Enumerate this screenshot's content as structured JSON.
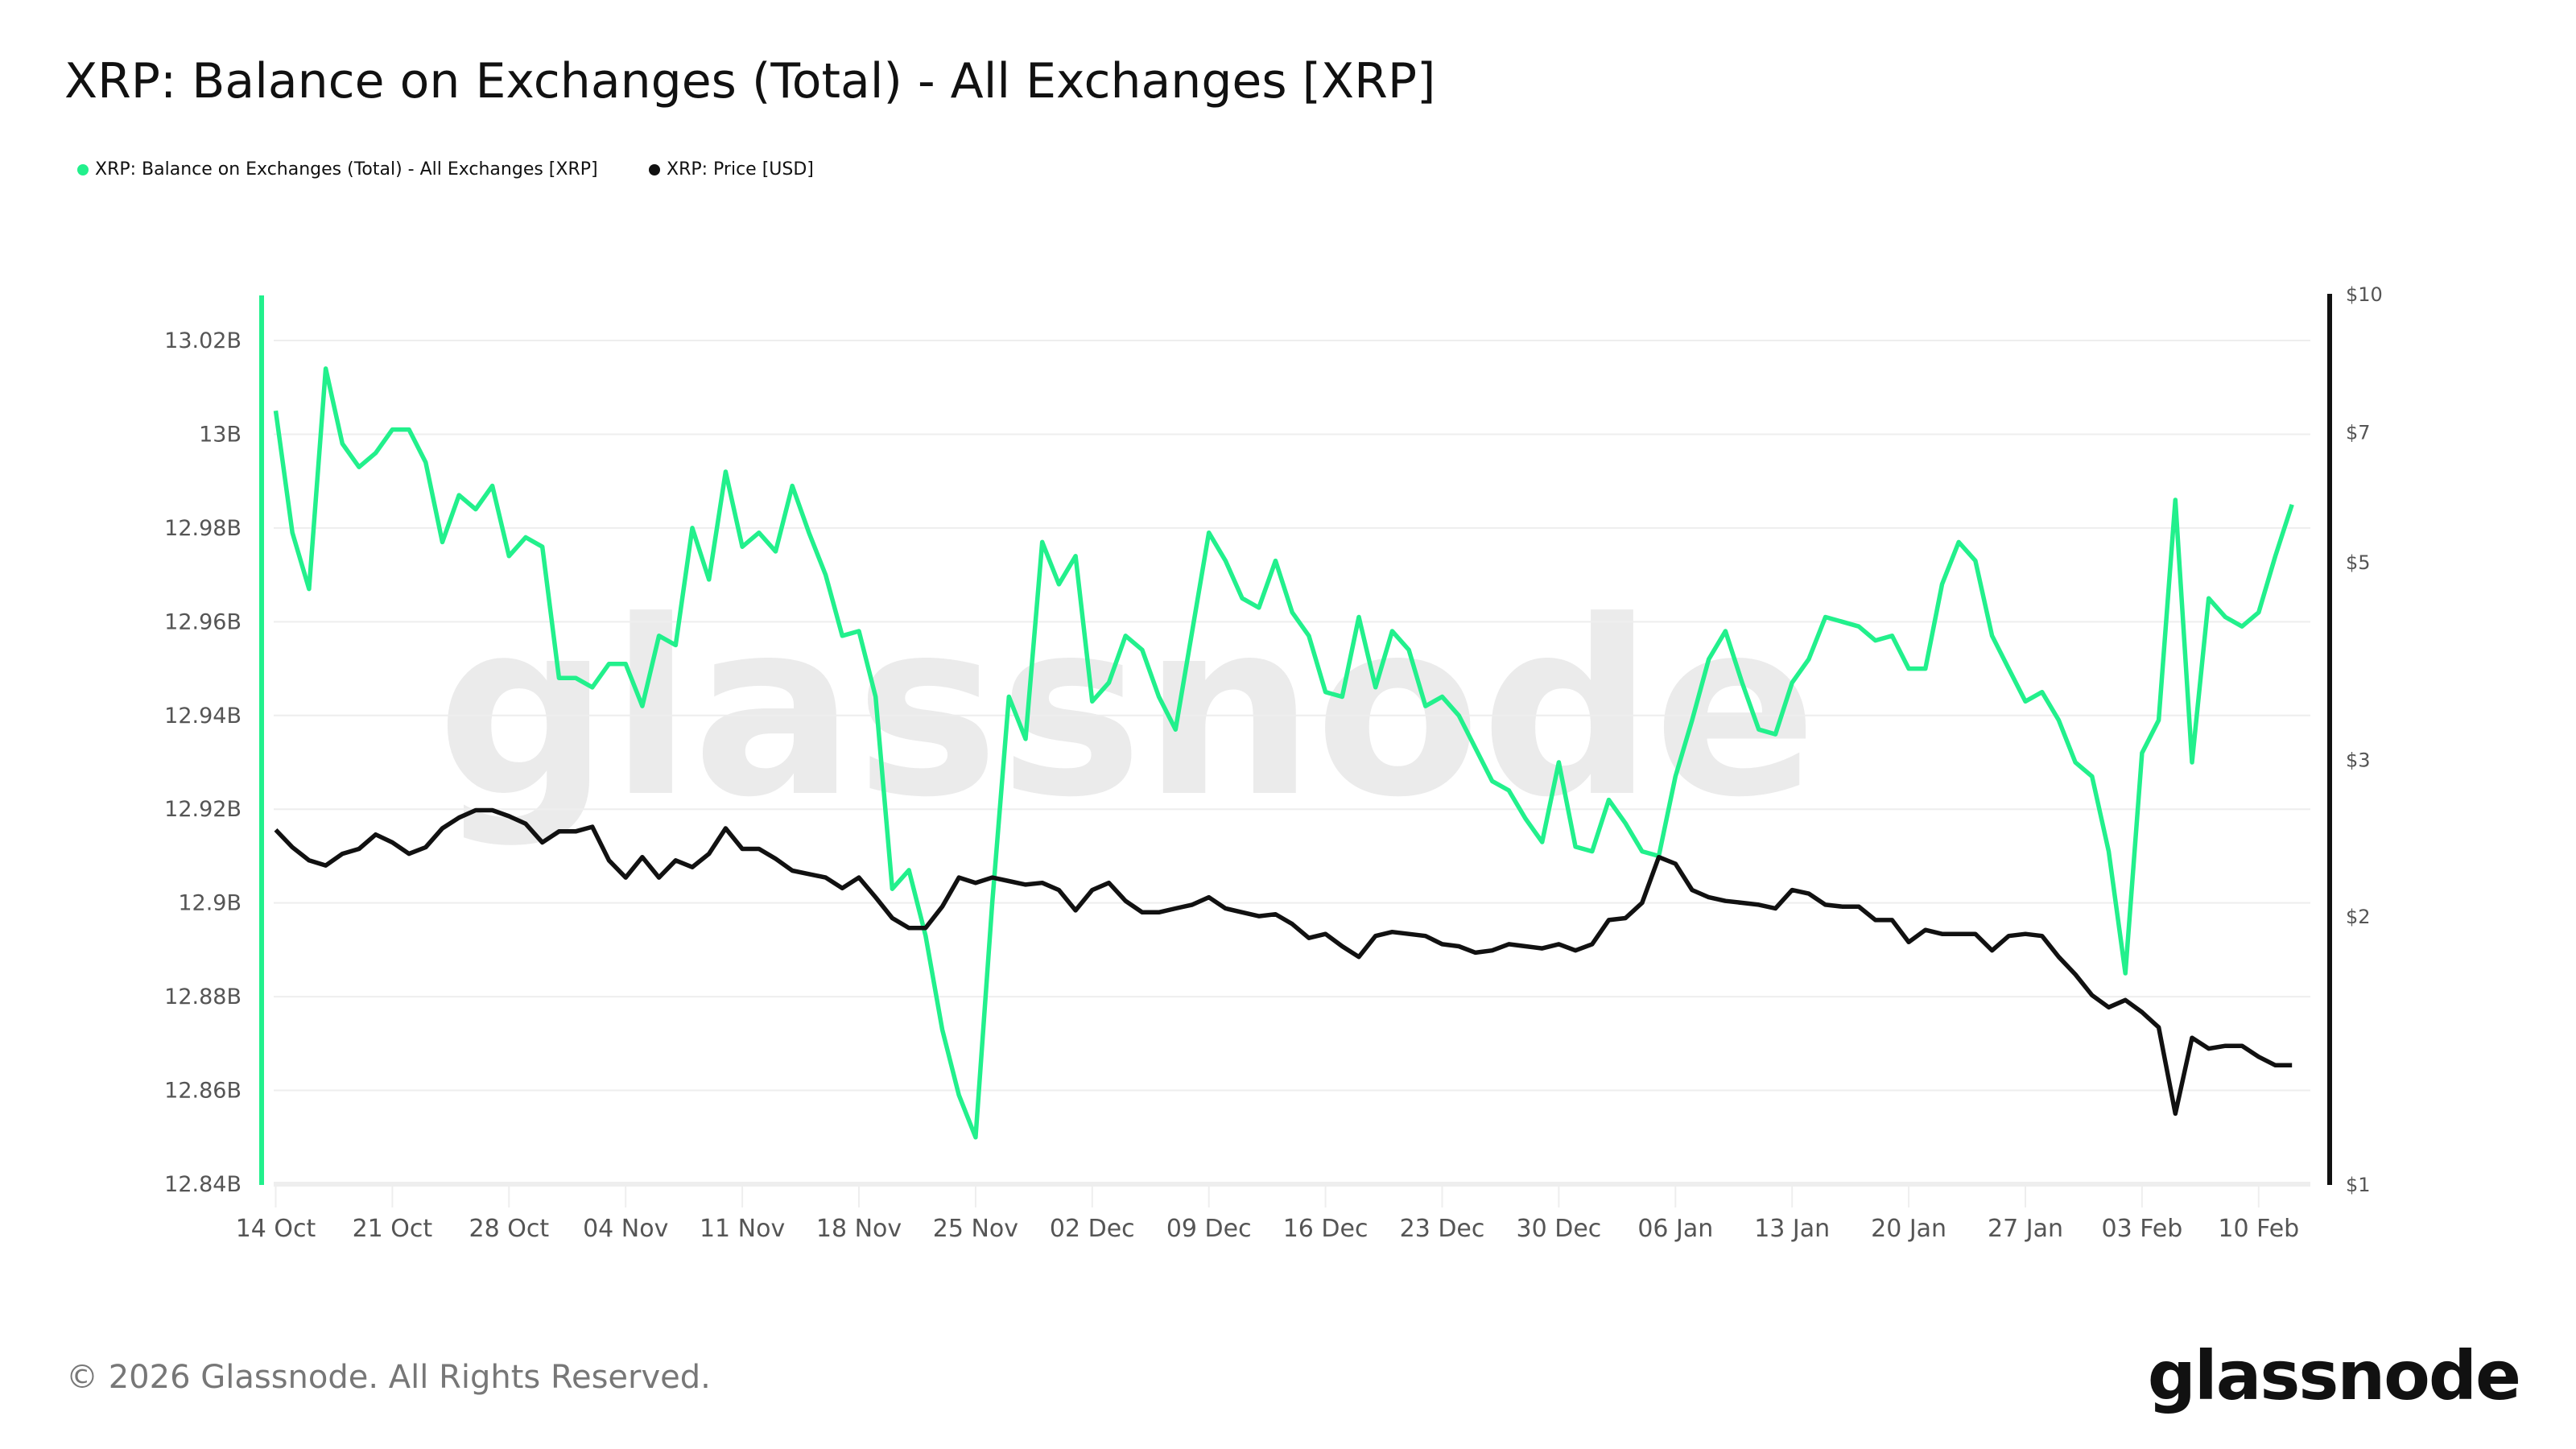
{
  "title": "XRP: Balance on Exchanges (Total) - All Exchanges [XRP]",
  "footer": {
    "copyright": "© 2026 Glassnode. All Rights Reserved.",
    "logo": "glassnode"
  },
  "watermark": "glassnode",
  "colors": {
    "balance": "#22f08c",
    "price": "#111111",
    "grid": "#eeeeee",
    "tick_text": "#555555"
  },
  "chart_data": {
    "type": "line",
    "title": "XRP: Balance on Exchanges (Total) - All Exchanges [XRP]",
    "legend": {
      "placement": "top-left"
    },
    "grid": true,
    "x_tick_labels": [
      "14 Oct",
      "21 Oct",
      "28 Oct",
      "04 Nov",
      "11 Nov",
      "18 Nov",
      "25 Nov",
      "02 Dec",
      "09 Dec",
      "16 Dec",
      "23 Dec",
      "30 Dec",
      "06 Jan",
      "13 Jan",
      "20 Jan",
      "27 Jan",
      "03 Feb",
      "10 Feb"
    ],
    "y_left": {
      "ticks": [
        12.84,
        12.86,
        12.88,
        12.9,
        12.92,
        12.94,
        12.96,
        12.98,
        13.0,
        13.02
      ],
      "tick_labels": [
        "12.84B",
        "12.86B",
        "12.88B",
        "12.9B",
        "12.92B",
        "12.94B",
        "12.96B",
        "12.98B",
        "13B",
        "13.02B"
      ],
      "range": [
        12.84,
        13.02
      ],
      "unit": "B XRP",
      "scale": "linear"
    },
    "y_right": {
      "ticks": [
        1,
        2,
        3,
        5,
        7,
        10
      ],
      "tick_labels": [
        "$1",
        "$2",
        "$3",
        "$5",
        "$7",
        "$10"
      ],
      "range": [
        1,
        10
      ],
      "unit": "USD",
      "scale": "log"
    },
    "x": [
      "14 Oct",
      "15 Oct",
      "16 Oct",
      "17 Oct",
      "18 Oct",
      "19 Oct",
      "20 Oct",
      "21 Oct",
      "22 Oct",
      "23 Oct",
      "24 Oct",
      "25 Oct",
      "26 Oct",
      "27 Oct",
      "28 Oct",
      "29 Oct",
      "30 Oct",
      "31 Oct",
      "01 Nov",
      "02 Nov",
      "03 Nov",
      "04 Nov",
      "05 Nov",
      "06 Nov",
      "07 Nov",
      "08 Nov",
      "09 Nov",
      "10 Nov",
      "11 Nov",
      "12 Nov",
      "13 Nov",
      "14 Nov",
      "15 Nov",
      "16 Nov",
      "17 Nov",
      "18 Nov",
      "19 Nov",
      "20 Nov",
      "21 Nov",
      "22 Nov",
      "23 Nov",
      "24 Nov",
      "25 Nov",
      "26 Nov",
      "27 Nov",
      "28 Nov",
      "29 Nov",
      "30 Nov",
      "01 Dec",
      "02 Dec",
      "03 Dec",
      "04 Dec",
      "05 Dec",
      "06 Dec",
      "07 Dec",
      "08 Dec",
      "09 Dec",
      "10 Dec",
      "11 Dec",
      "12 Dec",
      "13 Dec",
      "14 Dec",
      "15 Dec",
      "16 Dec",
      "17 Dec",
      "18 Dec",
      "19 Dec",
      "20 Dec",
      "21 Dec",
      "22 Dec",
      "23 Dec",
      "24 Dec",
      "25 Dec",
      "26 Dec",
      "27 Dec",
      "28 Dec",
      "29 Dec",
      "30 Dec",
      "31 Dec",
      "01 Jan",
      "02 Jan",
      "03 Jan",
      "04 Jan",
      "05 Jan",
      "06 Jan",
      "07 Jan",
      "08 Jan",
      "09 Jan",
      "10 Jan",
      "11 Jan",
      "12 Jan",
      "13 Jan",
      "14 Jan",
      "15 Jan",
      "16 Jan",
      "17 Jan",
      "18 Jan",
      "19 Jan",
      "20 Jan",
      "21 Jan",
      "22 Jan",
      "23 Jan",
      "24 Jan",
      "25 Jan",
      "26 Jan",
      "27 Jan",
      "28 Jan",
      "29 Jan",
      "30 Jan",
      "31 Jan",
      "01 Feb",
      "02 Feb",
      "03 Feb",
      "04 Feb",
      "05 Feb",
      "06 Feb",
      "07 Feb",
      "08 Feb",
      "09 Feb",
      "10 Feb",
      "11 Feb",
      "12 Feb"
    ],
    "series": [
      {
        "name": "XRP: Balance on Exchanges (Total) - All Exchanges [XRP]",
        "axis": "left",
        "color": "#22f08c",
        "values": [
          13.005,
          12.979,
          12.967,
          13.014,
          12.998,
          12.993,
          12.996,
          13.001,
          13.001,
          12.994,
          12.977,
          12.987,
          12.984,
          12.989,
          12.974,
          12.978,
          12.976,
          12.948,
          12.948,
          12.946,
          12.951,
          12.951,
          12.942,
          12.957,
          12.955,
          12.98,
          12.969,
          12.992,
          12.976,
          12.979,
          12.975,
          12.989,
          12.979,
          12.97,
          12.957,
          12.958,
          12.944,
          12.903,
          12.907,
          12.893,
          12.873,
          12.859,
          12.85,
          12.9,
          12.944,
          12.935,
          12.977,
          12.968,
          12.974,
          12.943,
          12.947,
          12.957,
          12.954,
          12.944,
          12.937,
          12.958,
          12.979,
          12.973,
          12.965,
          12.963,
          12.973,
          12.962,
          12.957,
          12.945,
          12.944,
          12.961,
          12.946,
          12.958,
          12.954,
          12.942,
          12.944,
          12.94,
          12.933,
          12.926,
          12.924,
          12.918,
          12.913,
          12.93,
          12.912,
          12.911,
          12.922,
          12.917,
          12.911,
          12.91,
          12.927,
          12.939,
          12.952,
          12.958,
          12.947,
          12.937,
          12.936,
          12.947,
          12.952,
          12.961,
          12.96,
          12.959,
          12.956,
          12.957,
          12.95,
          12.95,
          12.968,
          12.977,
          12.973,
          12.957,
          12.95,
          12.943,
          12.945,
          12.939,
          12.93,
          12.927,
          12.911,
          12.885,
          12.932,
          12.939,
          12.986,
          12.93,
          12.965,
          12.961,
          12.959,
          12.962,
          12.974,
          12.985
        ]
      },
      {
        "name": "XRP: Price [USD]",
        "axis": "right",
        "color": "#111111",
        "values": [
          2.5,
          2.39,
          2.31,
          2.28,
          2.35,
          2.38,
          2.47,
          2.42,
          2.35,
          2.39,
          2.51,
          2.58,
          2.63,
          2.63,
          2.59,
          2.54,
          2.42,
          2.49,
          2.49,
          2.52,
          2.31,
          2.21,
          2.33,
          2.21,
          2.31,
          2.27,
          2.35,
          2.51,
          2.38,
          2.38,
          2.32,
          2.25,
          2.23,
          2.21,
          2.15,
          2.21,
          2.1,
          1.99,
          1.94,
          1.94,
          2.05,
          2.21,
          2.18,
          2.21,
          2.19,
          2.17,
          2.18,
          2.14,
          2.03,
          2.14,
          2.18,
          2.08,
          2.02,
          2.02,
          2.04,
          2.06,
          2.1,
          2.04,
          2.02,
          2.0,
          2.01,
          1.96,
          1.89,
          1.91,
          1.85,
          1.8,
          1.9,
          1.92,
          1.91,
          1.9,
          1.86,
          1.85,
          1.82,
          1.83,
          1.86,
          1.85,
          1.84,
          1.86,
          1.83,
          1.86,
          1.98,
          1.99,
          2.07,
          2.33,
          2.29,
          2.14,
          2.1,
          2.08,
          2.07,
          2.06,
          2.04,
          2.14,
          2.12,
          2.06,
          2.05,
          2.05,
          1.98,
          1.98,
          1.87,
          1.93,
          1.91,
          1.91,
          1.91,
          1.83,
          1.9,
          1.91,
          1.9,
          1.8,
          1.72,
          1.63,
          1.58,
          1.61,
          1.56,
          1.5,
          1.2,
          1.46,
          1.42,
          1.43,
          1.43,
          1.39,
          1.36,
          1.36
        ]
      }
    ]
  }
}
